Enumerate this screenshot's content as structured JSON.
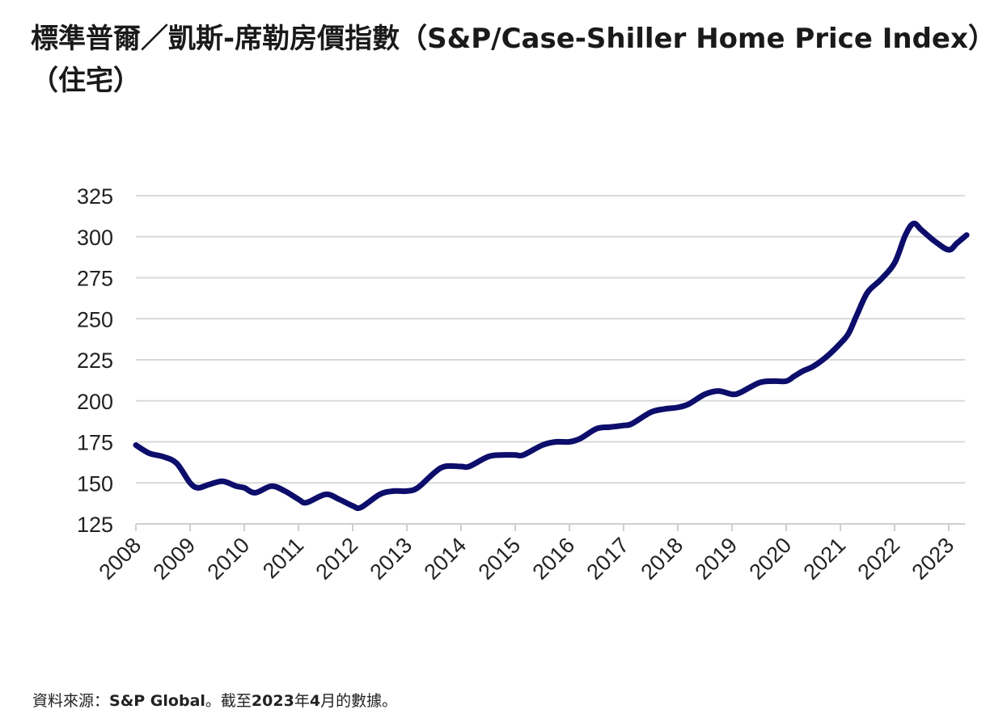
{
  "title": "標準普爾／凱斯-席勒房價指數（S&P/Case-Shiller Home Price Index）（住宅）",
  "footnote": {
    "prefix": "資料來源：",
    "source": "S&P Global",
    "mid": "。截至",
    "year": "2023",
    "year_suffix": "年",
    "month": "4",
    "suffix": "月的數據。"
  },
  "chart_data": {
    "type": "line",
    "title": "",
    "xlabel": "",
    "ylabel": "",
    "ylim": [
      125,
      325
    ],
    "yticks": [
      125,
      150,
      175,
      200,
      225,
      250,
      275,
      300,
      325
    ],
    "xlim": [
      2008,
      2023.33
    ],
    "xticks": [
      "2008",
      "2009",
      "2010",
      "2011",
      "2012",
      "2013",
      "2014",
      "2015",
      "2016",
      "2017",
      "2018",
      "2019",
      "2020",
      "2021",
      "2022",
      "2023"
    ],
    "grid": true,
    "line_color": "#0d0d6b",
    "series": [
      {
        "x": [
          2008.0,
          2008.25,
          2008.5,
          2008.75,
          2009.0,
          2009.15,
          2009.35,
          2009.6,
          2009.85,
          2010.0,
          2010.2,
          2010.5,
          2010.75,
          2011.0,
          2011.15,
          2011.5,
          2011.75,
          2012.0,
          2012.15,
          2012.5,
          2012.75,
          2013.0,
          2013.2,
          2013.5,
          2013.7,
          2014.0,
          2014.15,
          2014.5,
          2014.75,
          2015.0,
          2015.15,
          2015.5,
          2015.75,
          2016.0,
          2016.2,
          2016.5,
          2016.75,
          2017.0,
          2017.15,
          2017.5,
          2017.75,
          2018.0,
          2018.2,
          2018.5,
          2018.75,
          2019.0,
          2019.15,
          2019.5,
          2019.75,
          2020.0,
          2020.15,
          2020.3,
          2020.5,
          2020.75,
          2021.0,
          2021.15,
          2021.3,
          2021.5,
          2021.75,
          2022.0,
          2022.2,
          2022.35,
          2022.5,
          2022.75,
          2023.0,
          2023.15,
          2023.33
        ],
        "values": [
          173,
          168,
          166,
          162,
          150,
          147,
          149,
          151,
          148,
          147,
          144,
          148,
          145,
          140,
          138,
          143,
          140,
          136,
          135,
          143,
          145,
          145,
          147,
          156,
          160,
          160,
          160,
          166,
          167,
          167,
          167,
          173,
          175,
          175,
          177,
          183,
          184,
          185,
          186,
          193,
          195,
          196,
          198,
          204,
          206,
          204,
          205,
          211,
          212,
          212,
          215,
          218,
          221,
          227,
          235,
          241,
          252,
          266,
          274,
          284,
          301,
          308,
          304,
          297,
          292,
          296,
          301
        ]
      }
    ]
  }
}
